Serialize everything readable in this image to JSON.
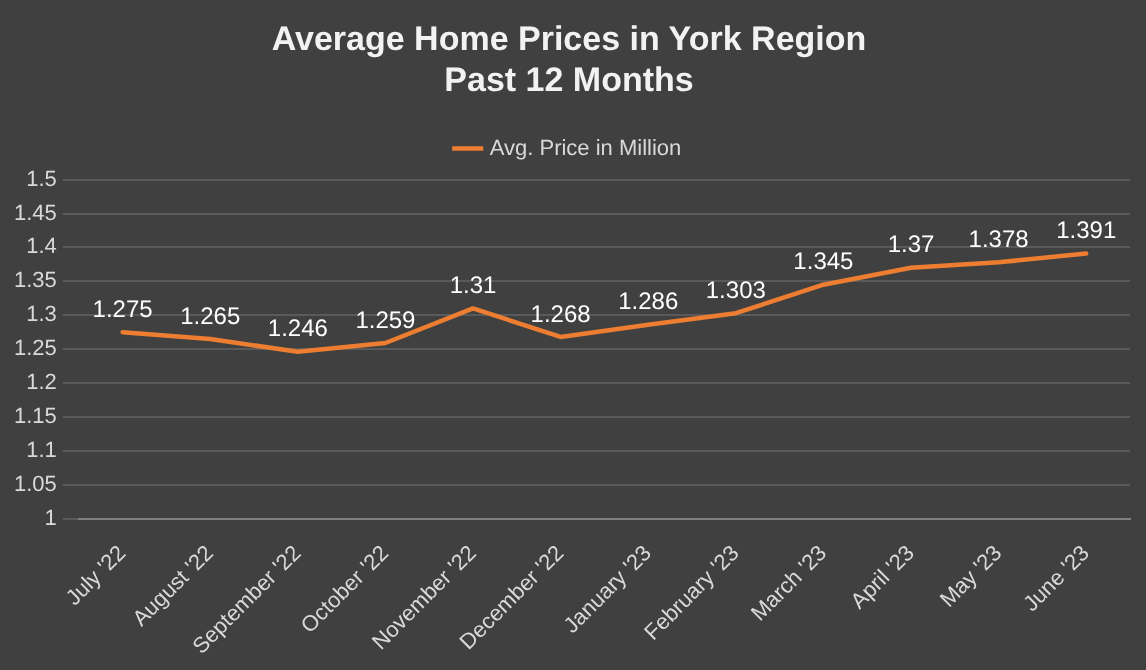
{
  "chart_data": {
    "type": "line",
    "title": "Average Home Prices in York Region\nPast 12 Months",
    "categories": [
      "July '22",
      "August '22",
      "September '22",
      "October '22",
      "November '22",
      "December '22",
      "January '23",
      "February '23",
      "March '23",
      "April '23",
      "May '23",
      "June '23"
    ],
    "series": [
      {
        "name": "Avg. Price in Million",
        "color": "#ed7d31",
        "values": [
          1.275,
          1.265,
          1.246,
          1.259,
          1.31,
          1.268,
          1.286,
          1.303,
          1.345,
          1.37,
          1.378,
          1.391
        ]
      }
    ],
    "ylim": [
      1,
      1.5
    ],
    "yticks": [
      1,
      1.05,
      1.1,
      1.15,
      1.2,
      1.25,
      1.3,
      1.35,
      1.4,
      1.45,
      1.5
    ],
    "grid": "y",
    "legend": "top",
    "marker": "none",
    "line_style": "solid",
    "data_labels": true
  }
}
